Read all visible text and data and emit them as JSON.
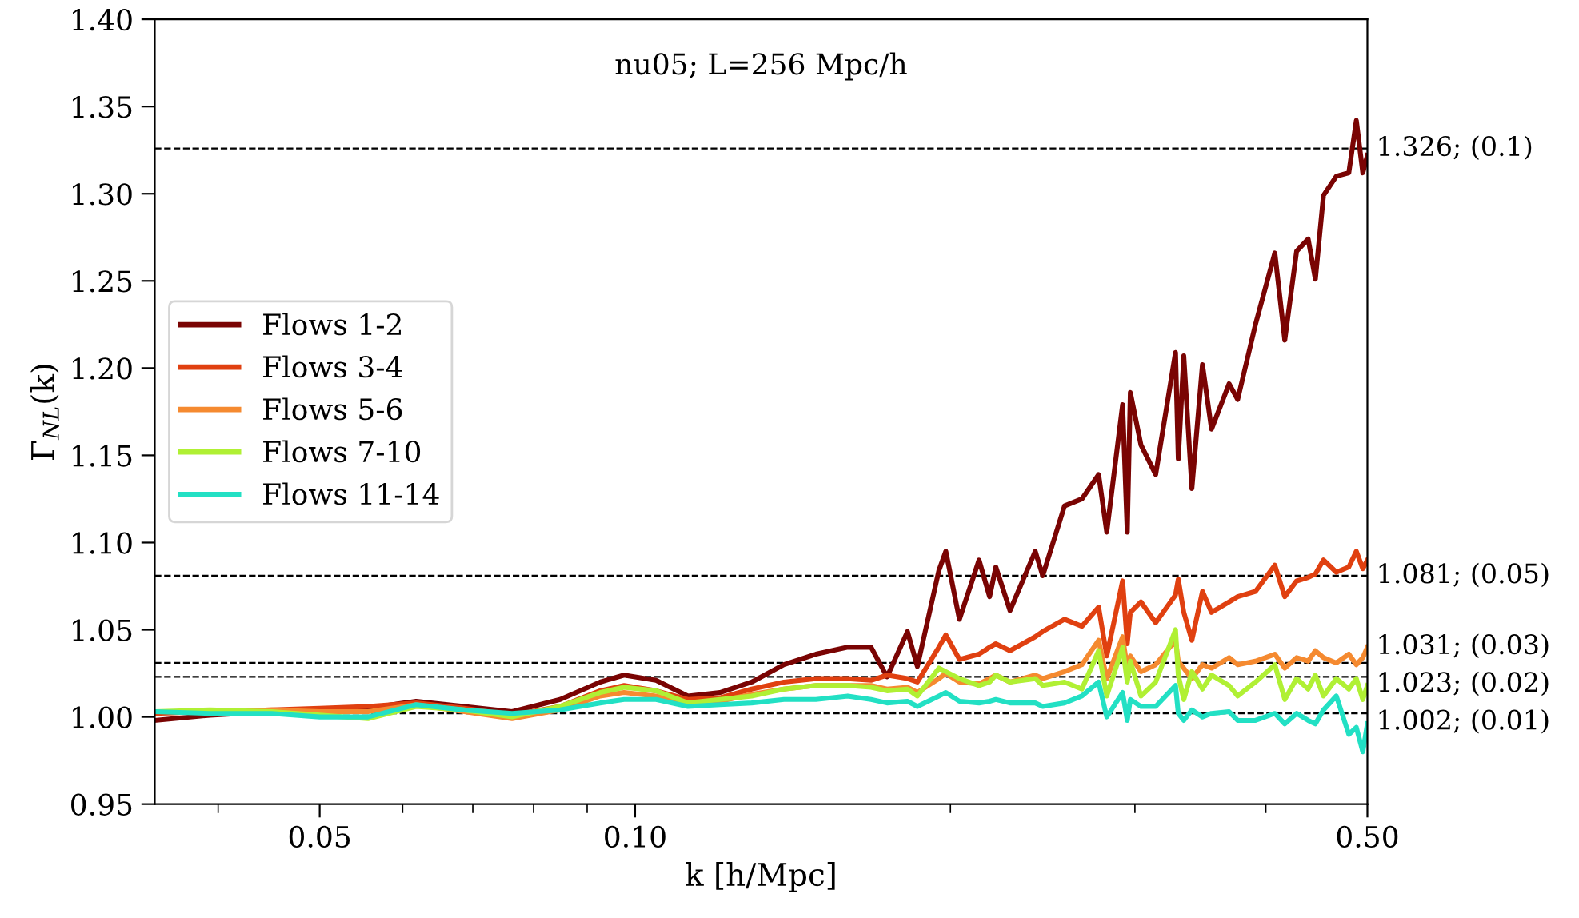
{
  "chart_data": {
    "type": "line",
    "title": "nu05; L=256 Mpc/h",
    "xlabel": "k [h/Mpc]",
    "ylabel": "Γ$_{NL}$(k)",
    "log": "x",
    "legend": "center left",
    "grid": false,
    "line_style": "solid",
    "marker": "none",
    "x": [
      0.0348,
      0.0393,
      0.045,
      0.05,
      0.0556,
      0.0618,
      0.0687,
      0.0763,
      0.0848,
      0.0926,
      0.0976,
      0.1047,
      0.1123,
      0.1205,
      0.1292,
      0.1387,
      0.1488,
      0.1596,
      0.168,
      0.174,
      0.182,
      0.186,
      0.195,
      0.198,
      0.204,
      0.213,
      0.218,
      0.221,
      0.228,
      0.241,
      0.245,
      0.257,
      0.267,
      0.277,
      0.282,
      0.292,
      0.295,
      0.297,
      0.304,
      0.314,
      0.328,
      0.33,
      0.334,
      0.34,
      0.348,
      0.355,
      0.369,
      0.376,
      0.391,
      0.408,
      0.417,
      0.428,
      0.439,
      0.446,
      0.454,
      0.467,
      0.48,
      0.488,
      0.495,
      0.5
    ],
    "series": [
      {
        "name": "Flows 1-2",
        "color": "#7a0403",
        "values": [
          0.998,
          1.001,
          1.003,
          1.004,
          1.005,
          1.009,
          1.006,
          1.003,
          1.01,
          1.02,
          1.024,
          1.021,
          1.012,
          1.014,
          1.02,
          1.03,
          1.036,
          1.04,
          1.04,
          1.023,
          1.049,
          1.029,
          1.084,
          1.095,
          1.056,
          1.09,
          1.069,
          1.086,
          1.061,
          1.095,
          1.081,
          1.121,
          1.125,
          1.139,
          1.106,
          1.179,
          1.106,
          1.186,
          1.156,
          1.139,
          1.209,
          1.148,
          1.207,
          1.131,
          1.202,
          1.165,
          1.191,
          1.182,
          1.225,
          1.266,
          1.216,
          1.267,
          1.274,
          1.251,
          1.299,
          1.31,
          1.312,
          1.342,
          1.312,
          1.322
        ]
      },
      {
        "name": "Flows 3-4",
        "color": "#e04010",
        "values": [
          1.002,
          1.003,
          1.004,
          1.005,
          1.006,
          1.008,
          1.005,
          1.001,
          1.006,
          1.015,
          1.018,
          1.015,
          1.01,
          1.011,
          1.016,
          1.02,
          1.022,
          1.022,
          1.021,
          1.024,
          1.022,
          1.02,
          1.04,
          1.047,
          1.033,
          1.036,
          1.04,
          1.042,
          1.038,
          1.046,
          1.049,
          1.056,
          1.052,
          1.063,
          1.035,
          1.078,
          1.042,
          1.06,
          1.066,
          1.054,
          1.07,
          1.079,
          1.06,
          1.044,
          1.072,
          1.06,
          1.066,
          1.069,
          1.072,
          1.087,
          1.069,
          1.078,
          1.08,
          1.082,
          1.09,
          1.083,
          1.086,
          1.095,
          1.085,
          1.09
        ]
      },
      {
        "name": "Flows 5-6",
        "color": "#f58a30",
        "values": [
          1.003,
          1.003,
          1.004,
          1.003,
          1.003,
          1.007,
          1.003,
          0.999,
          1.004,
          1.012,
          1.014,
          1.012,
          1.008,
          1.009,
          1.013,
          1.016,
          1.018,
          1.018,
          1.018,
          1.016,
          1.017,
          1.014,
          1.022,
          1.025,
          1.02,
          1.019,
          1.022,
          1.024,
          1.02,
          1.024,
          1.022,
          1.026,
          1.03,
          1.044,
          1.022,
          1.046,
          1.028,
          1.035,
          1.026,
          1.03,
          1.044,
          1.032,
          1.028,
          1.022,
          1.03,
          1.028,
          1.034,
          1.03,
          1.032,
          1.036,
          1.028,
          1.034,
          1.032,
          1.038,
          1.034,
          1.031,
          1.036,
          1.03,
          1.034,
          1.04
        ]
      },
      {
        "name": "Flows 7-10",
        "color": "#b0f034",
        "values": [
          1.003,
          1.004,
          1.003,
          1.001,
          0.999,
          1.006,
          1.004,
          1.0,
          1.006,
          1.014,
          1.017,
          1.015,
          1.008,
          1.01,
          1.012,
          1.016,
          1.018,
          1.018,
          1.017,
          1.015,
          1.016,
          1.012,
          1.028,
          1.026,
          1.022,
          1.018,
          1.02,
          1.024,
          1.02,
          1.022,
          1.018,
          1.02,
          1.016,
          1.038,
          1.012,
          1.04,
          1.02,
          1.032,
          1.012,
          1.02,
          1.05,
          1.024,
          1.01,
          1.026,
          1.016,
          1.024,
          1.018,
          1.012,
          1.02,
          1.03,
          1.01,
          1.022,
          1.016,
          1.024,
          1.012,
          1.022,
          1.016,
          1.022,
          1.01,
          1.018
        ]
      },
      {
        "name": "Flows 11-14",
        "color": "#22e0c4",
        "values": [
          1.003,
          1.002,
          1.002,
          1.0,
          1.0,
          1.007,
          1.004,
          1.002,
          1.004,
          1.008,
          1.01,
          1.01,
          1.006,
          1.007,
          1.008,
          1.01,
          1.01,
          1.012,
          1.01,
          1.008,
          1.009,
          1.006,
          1.012,
          1.014,
          1.009,
          1.008,
          1.009,
          1.01,
          1.008,
          1.008,
          1.006,
          1.008,
          1.012,
          1.02,
          1.0,
          1.014,
          0.998,
          1.01,
          1.006,
          1.006,
          1.018,
          1.002,
          0.998,
          1.004,
          1.0,
          1.002,
          1.003,
          0.998,
          0.998,
          1.002,
          0.996,
          1.002,
          0.998,
          0.996,
          1.004,
          1.012,
          0.99,
          0.994,
          0.98,
          0.996
        ]
      }
    ],
    "ref_lines": [
      {
        "axis": "y",
        "value": 1.326,
        "label": "1.326; (0.1)",
        "color": "#000000",
        "line_style": "dashed"
      },
      {
        "axis": "y",
        "value": 1.081,
        "label": "1.081; (0.05)",
        "color": "#000000",
        "line_style": "dashed"
      },
      {
        "axis": "y",
        "value": 1.031,
        "label": "1.031; (0.03)",
        "color": "#000000",
        "line_style": "dashed"
      },
      {
        "axis": "y",
        "value": 1.023,
        "label": "1.023; (0.02)",
        "color": "#000000",
        "line_style": "dashed"
      },
      {
        "axis": "y",
        "value": 1.002,
        "label": "1.002; (0.01)",
        "color": "#000000",
        "line_style": "dashed"
      }
    ],
    "xlim": [
      0.0348,
      0.5
    ],
    "ylim": [
      0.95,
      1.4
    ],
    "xticks": [
      {
        "value": 0.04,
        "label": null
      },
      {
        "value": 0.05,
        "label": "0.05"
      },
      {
        "value": 0.06,
        "label": null
      },
      {
        "value": 0.07,
        "label": null
      },
      {
        "value": 0.08,
        "label": null
      },
      {
        "value": 0.09,
        "label": null
      },
      {
        "value": 0.1,
        "label": "0.10"
      },
      {
        "value": 0.2,
        "label": null
      },
      {
        "value": 0.3,
        "label": null
      },
      {
        "value": 0.4,
        "label": null
      },
      {
        "value": 0.5,
        "label": "0.50"
      }
    ],
    "yticks": [
      {
        "value": 0.95,
        "label": "0.95"
      },
      {
        "value": 1.0,
        "label": "1.00"
      },
      {
        "value": 1.05,
        "label": "1.05"
      },
      {
        "value": 1.1,
        "label": "1.10"
      },
      {
        "value": 1.15,
        "label": "1.15"
      },
      {
        "value": 1.2,
        "label": "1.20"
      },
      {
        "value": 1.25,
        "label": "1.25"
      },
      {
        "value": 1.3,
        "label": "1.30"
      },
      {
        "value": 1.35,
        "label": "1.35"
      },
      {
        "value": 1.4,
        "label": "1.40"
      }
    ]
  }
}
